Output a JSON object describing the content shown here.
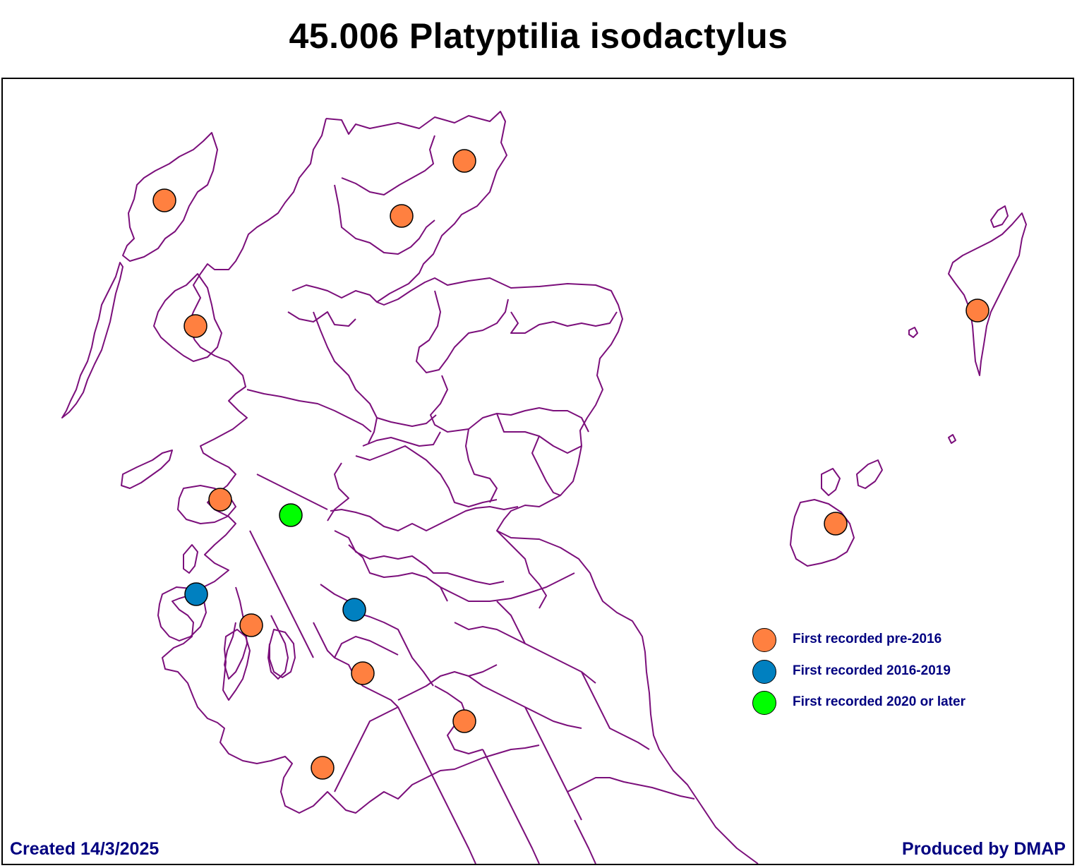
{
  "title": "45.006 Platyptilia isodactylus",
  "created": "Created 14/3/2025",
  "produced": "Produced by DMAP",
  "colors": {
    "boundary": "#7b0f7b",
    "pre_2016": "#ff8040",
    "r2016_2019": "#0080c0",
    "r2020_later": "#00ff00"
  },
  "legend": [
    {
      "label": "First recorded pre-2016",
      "color": "#ff8040"
    },
    {
      "label": "First recorded 2016-2019",
      "color": "#0080c0"
    },
    {
      "label": "First recorded 2020 or later",
      "color": "#00ff00"
    }
  ],
  "records": [
    {
      "category": "pre-2016"
    },
    {
      "category": "pre-2016"
    },
    {
      "category": "pre-2016"
    },
    {
      "category": "pre-2016"
    },
    {
      "category": "pre-2016"
    },
    {
      "category": "2020 or later"
    },
    {
      "category": "2016-2019"
    },
    {
      "category": "pre-2016"
    },
    {
      "category": "2016-2019"
    },
    {
      "category": "pre-2016"
    },
    {
      "category": "pre-2016"
    },
    {
      "category": "pre-2016"
    },
    {
      "category": "pre-2016"
    },
    {
      "category": "pre-2016"
    }
  ]
}
